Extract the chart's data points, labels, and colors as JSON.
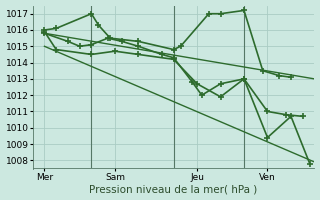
{
  "xlabel": "Pression niveau de la mer( hPa )",
  "background_color": "#cce8e0",
  "plot_bg_color": "#cce8e0",
  "grid_color": "#aaccc4",
  "line_color": "#2d6b2d",
  "ylim": [
    1007.5,
    1017.5
  ],
  "yticks": [
    1008,
    1009,
    1010,
    1011,
    1012,
    1013,
    1014,
    1015,
    1016,
    1017
  ],
  "xlim": [
    0,
    12
  ],
  "day_labels": [
    "Mer",
    "Sam",
    "Jeu",
    "Ven"
  ],
  "day_positions": [
    0.5,
    3.5,
    7.0,
    10.0
  ],
  "vline_positions": [
    2.5,
    6.0,
    9.0
  ],
  "lines": [
    {
      "x": [
        0.5,
        1.0,
        2.5,
        2.8,
        3.3,
        4.5,
        6.0,
        6.3,
        7.5,
        8.0,
        9.0,
        9.8,
        10.5,
        11.0
      ],
      "y": [
        1016.0,
        1016.1,
        1017.0,
        1016.3,
        1015.5,
        1015.3,
        1014.8,
        1015.0,
        1017.0,
        1017.0,
        1017.2,
        1013.5,
        1013.2,
        1013.1
      ],
      "marker": "+",
      "markersize": 4,
      "linewidth": 1.2,
      "linestyle": "-"
    },
    {
      "x": [
        0.5,
        1.5,
        2.0,
        2.5,
        3.2,
        3.8,
        4.5,
        5.5,
        6.0,
        6.8,
        7.2,
        8.0,
        9.0,
        10.0,
        10.8,
        11.5
      ],
      "y": [
        1015.8,
        1015.3,
        1015.0,
        1015.1,
        1015.5,
        1015.3,
        1015.0,
        1014.5,
        1014.3,
        1012.8,
        1012.0,
        1012.7,
        1013.0,
        1011.0,
        1010.8,
        1010.7
      ],
      "marker": "+",
      "markersize": 4,
      "linewidth": 1.2,
      "linestyle": "-"
    },
    {
      "x": [
        0.5,
        1.0,
        2.5,
        3.5,
        4.5,
        6.0,
        7.0,
        8.0,
        9.0,
        10.0,
        11.0,
        11.8
      ],
      "y": [
        1015.9,
        1014.8,
        1014.5,
        1014.7,
        1014.5,
        1014.2,
        1012.7,
        1011.9,
        1013.0,
        1009.4,
        1010.7,
        1007.8
      ],
      "marker": "+",
      "markersize": 4,
      "linewidth": 1.2,
      "linestyle": "-"
    },
    {
      "x": [
        0.5,
        12.0
      ],
      "y": [
        1015.8,
        1013.0
      ],
      "marker": null,
      "markersize": 0,
      "linewidth": 1.0,
      "linestyle": "-"
    },
    {
      "x": [
        0.5,
        12.0
      ],
      "y": [
        1015.0,
        1007.9
      ],
      "marker": null,
      "markersize": 0,
      "linewidth": 1.0,
      "linestyle": "-"
    }
  ],
  "tick_fontsize": 6.5,
  "label_fontsize": 7.5
}
